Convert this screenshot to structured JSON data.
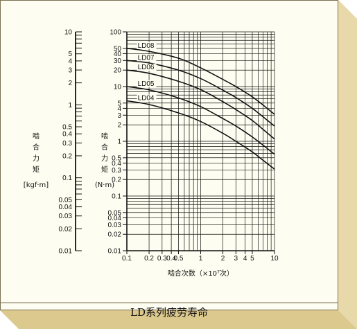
{
  "caption": "LD系列疲劳寿命",
  "colors": {
    "panel": "#fefdf1",
    "bevel_top": "#f7f0d2",
    "bevel_right": "#e7d9a9",
    "bevel_bottom": "#dcc98e",
    "line": "#111111"
  },
  "chart_data": {
    "type": "line",
    "xscale": "log",
    "yscale": "log",
    "xlim": [
      0.1,
      10
    ],
    "ylim_right": [
      0.01,
      100
    ],
    "ylim_left": [
      0.01,
      10
    ],
    "xlabel": "啮合次数（×10⁷次）",
    "ylabel_left_chars": [
      "啮",
      "合",
      "力",
      "矩"
    ],
    "ylabel_left_unit": "[kgf·m]",
    "ylabel_right_chars": [
      "啮",
      "合",
      "力",
      "矩"
    ],
    "ylabel_right_unit": "(N·m)",
    "x_tick_labels": [
      "0.1",
      "0.2",
      "0.3",
      "0.4",
      "0.5",
      "1",
      "2",
      "3",
      "4",
      "5",
      "10"
    ],
    "x_tick_values": [
      0.1,
      0.2,
      0.3,
      0.4,
      0.5,
      1,
      2,
      3,
      4,
      5,
      10
    ],
    "right_y_tick_labels": [
      "100",
      "50",
      "40",
      "30",
      "20",
      "10",
      "5",
      "4",
      "3",
      "2",
      "1",
      "0.5",
      "0.4",
      "0.3",
      "0.2",
      "0.1",
      "0.05",
      "0.04",
      "0.03",
      "0.02",
      "0.01"
    ],
    "right_y_tick_values": [
      100,
      50,
      40,
      30,
      20,
      10,
      5,
      4,
      3,
      2,
      1,
      0.5,
      0.4,
      0.3,
      0.2,
      0.1,
      0.05,
      0.04,
      0.03,
      0.02,
      0.01
    ],
    "left_y_tick_labels": [
      "10",
      "5",
      "4",
      "3",
      "2",
      "1",
      "0.5",
      "0.4",
      "0.3",
      "0.2",
      "0.1",
      "0.05",
      "0.04",
      "0.03",
      "0.02",
      "0.01"
    ],
    "left_y_tick_values": [
      10,
      5,
      4,
      3,
      2,
      1,
      0.5,
      0.4,
      0.3,
      0.2,
      0.1,
      0.05,
      0.04,
      0.03,
      0.02,
      0.01
    ],
    "grid": true,
    "series": [
      {
        "name": "LD08",
        "x": [
          0.1,
          0.2,
          0.5,
          1,
          2,
          3,
          5,
          7,
          10
        ],
        "y": [
          50,
          44,
          33,
          22,
          13.5,
          10,
          6.5,
          4.6,
          3.1
        ]
      },
      {
        "name": "LD07",
        "x": [
          0.1,
          0.2,
          0.5,
          1,
          2,
          3,
          5,
          7,
          10
        ],
        "y": [
          30,
          27,
          20,
          14,
          8.6,
          6.3,
          4,
          2.8,
          1.9
        ]
      },
      {
        "name": "LD06",
        "x": [
          0.1,
          0.2,
          0.5,
          1,
          2,
          3,
          5,
          7,
          10
        ],
        "y": [
          20,
          17.5,
          12.5,
          8.8,
          5.3,
          3.8,
          2.4,
          1.65,
          1.1
        ]
      },
      {
        "name": "LD05",
        "x": [
          0.1,
          0.2,
          0.5,
          1,
          2,
          3,
          5,
          7,
          10
        ],
        "y": [
          10,
          8.7,
          6.2,
          4.3,
          2.6,
          1.9,
          1.2,
          0.85,
          0.58
        ]
      },
      {
        "name": "LD04",
        "x": [
          0.1,
          0.2,
          0.5,
          1,
          2,
          3,
          5,
          7,
          10
        ],
        "y": [
          5.5,
          4.7,
          3.3,
          2.3,
          1.4,
          1.0,
          0.64,
          0.45,
          0.31
        ]
      }
    ]
  }
}
